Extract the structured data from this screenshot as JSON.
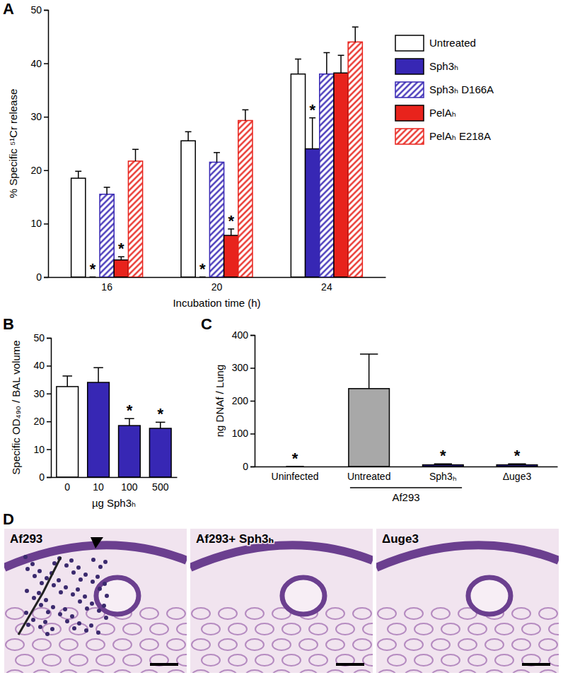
{
  "chart_data": [
    {
      "type": "bar",
      "title": "A",
      "x_label": "Incubation time (h)",
      "y_label": "% Specific ⁵¹Cr release",
      "categories": [
        "16",
        "20",
        "24"
      ],
      "series": [
        {
          "name": "Untreated",
          "color": "#ffffff",
          "marker": "solid",
          "values": [
            18.5,
            25.5,
            38
          ],
          "errors": [
            1.3,
            1.7,
            2.8
          ],
          "annotations": [
            null,
            null,
            null
          ]
        },
        {
          "name": "Sph3ₕ",
          "color": "#3727b4",
          "marker": "solid",
          "values": [
            0,
            0,
            24
          ],
          "errors": [
            0,
            0,
            5.8
          ],
          "annotations": [
            "*",
            "*",
            "*"
          ]
        },
        {
          "name": "Sph3ₕ D166A",
          "color": "#3727b4",
          "marker": "hatch",
          "values": [
            15.5,
            21.5,
            38
          ],
          "errors": [
            1.3,
            1.8,
            4
          ],
          "annotations": [
            null,
            null,
            null
          ]
        },
        {
          "name": "PelAₕ",
          "color": "#e8231c",
          "marker": "solid",
          "values": [
            3.2,
            7.8,
            38.2
          ],
          "errors": [
            0.6,
            1.2,
            3.3
          ],
          "annotations": [
            "*",
            "*",
            null
          ]
        },
        {
          "name": "PelAₕ E218A",
          "color": "#e8231c",
          "marker": "hatch",
          "values": [
            21.7,
            29.3,
            44
          ],
          "errors": [
            2.2,
            2,
            2.8
          ],
          "annotations": [
            null,
            null,
            null
          ]
        }
      ],
      "ylim": [
        0,
        50
      ],
      "yticks": [
        0,
        10,
        20,
        30,
        40,
        50
      ],
      "legend": "right"
    },
    {
      "type": "bar",
      "title": "B",
      "x_label": "µg Sph3ₕ",
      "y_label": "Specific OD₄₉₀ / BAL volume",
      "categories": [
        "0",
        "10",
        "100",
        "500"
      ],
      "values": [
        32.5,
        34,
        18.5,
        17.5
      ],
      "errors": [
        3.8,
        5.3,
        2.5,
        2.2
      ],
      "colors": [
        "#ffffff",
        "#3727b4",
        "#3727b4",
        "#3727b4"
      ],
      "annotations": [
        null,
        null,
        "*",
        "*"
      ],
      "ylim": [
        0,
        50
      ],
      "yticks": [
        0,
        10,
        20,
        30,
        40,
        50
      ]
    },
    {
      "type": "bar",
      "title": "C",
      "y_label": "ng DNAf / Lung",
      "categories": [
        "Uninfected",
        "Untreated",
        "Sph3ₕ",
        "Δuge3"
      ],
      "values": [
        0,
        237,
        5,
        5
      ],
      "errors": [
        0,
        105,
        3,
        3
      ],
      "colors": [
        "#ffffff",
        "#a8a8a8",
        "#3727b4",
        "#3727b4"
      ],
      "annotations": [
        "*",
        null,
        "*",
        "*"
      ],
      "group_label": {
        "text": "Af293",
        "from": 1,
        "to": 2
      },
      "ylim": [
        0,
        400
      ],
      "yticks": [
        0,
        100,
        200,
        300,
        400
      ]
    }
  ],
  "image_panel": {
    "label": "D",
    "images": [
      {
        "label": "Af293"
      },
      {
        "label": "Af293+ Sph3ₕ"
      },
      {
        "label": "Δuge3"
      }
    ]
  }
}
